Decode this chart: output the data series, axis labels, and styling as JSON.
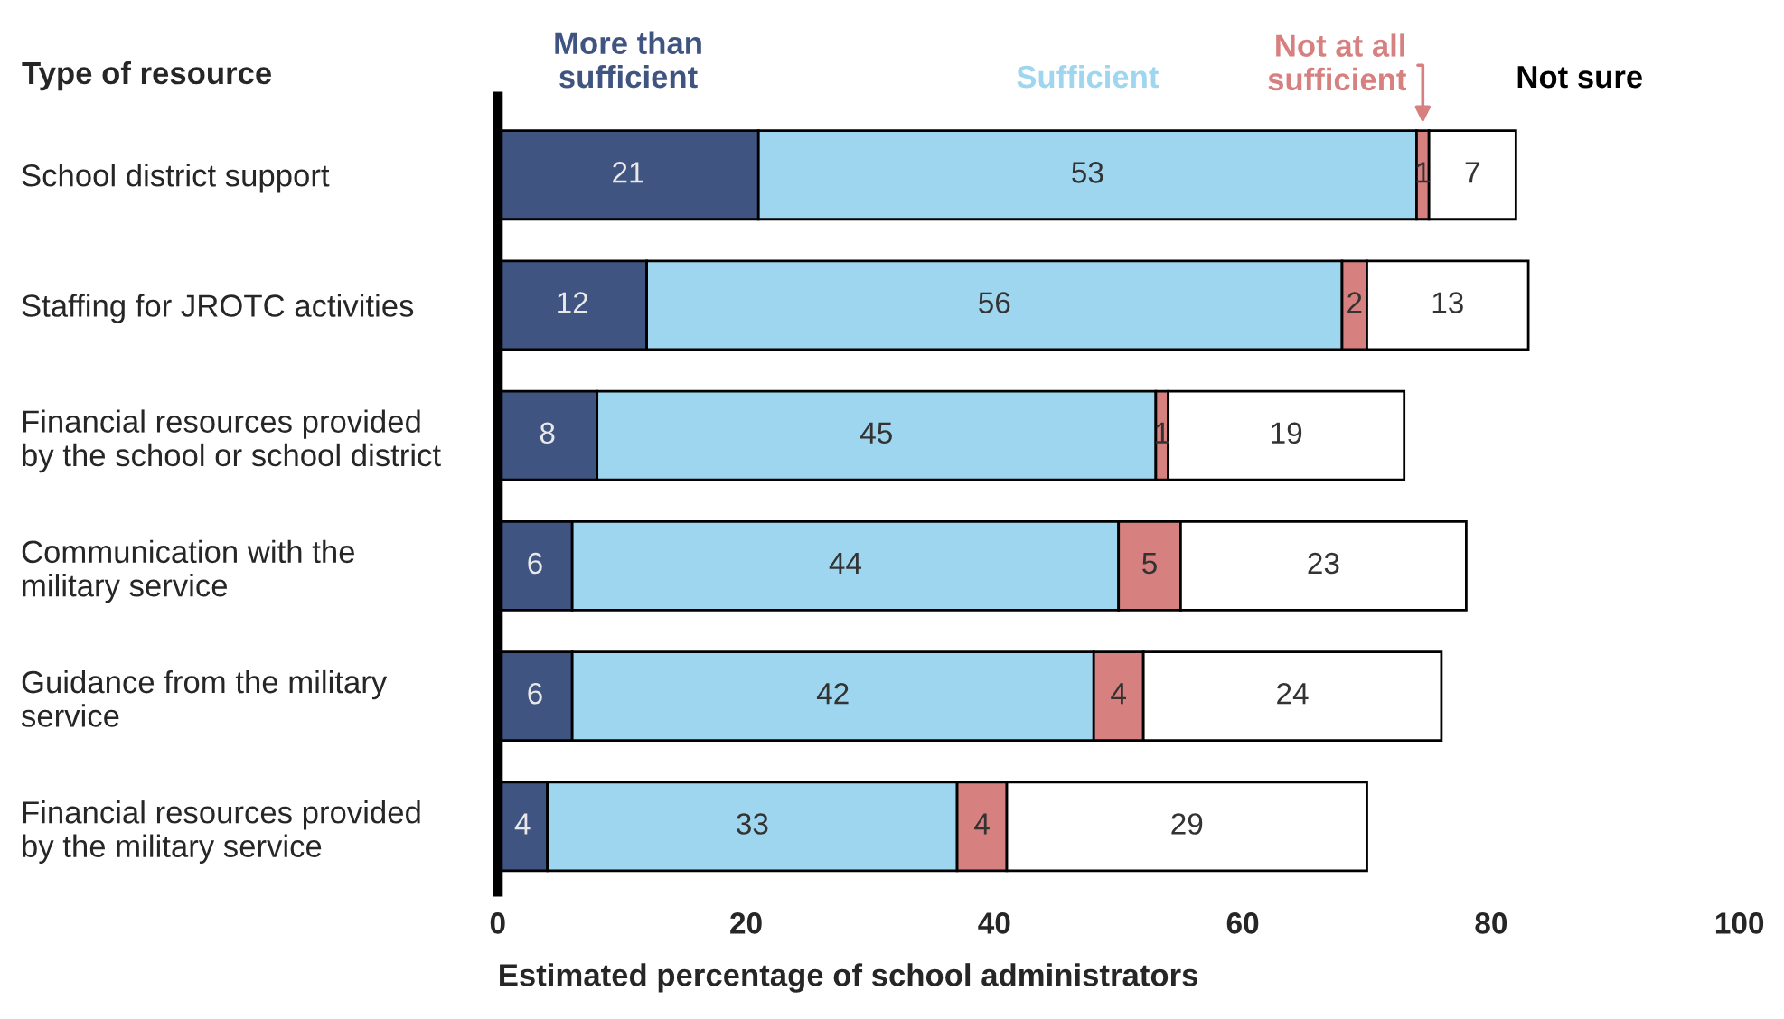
{
  "chart_data": {
    "type": "bar",
    "orientation": "horizontal",
    "stacked": true,
    "ylabel": "Type of resource",
    "xlabel": "Estimated percentage of school administrators",
    "categories": [
      "School district support",
      "Staffing for JROTC activities",
      "Financial resources provided\nby the school or school district",
      "Communication with the\nmilitary service",
      "Guidance from the military\nservice",
      "Financial resources provided\nby the military service"
    ],
    "series": [
      {
        "name": "More than\nsufficient",
        "color": "#3f5480",
        "values": [
          21,
          12,
          8,
          6,
          6,
          4
        ]
      },
      {
        "name": "Sufficient",
        "color": "#9ed6f0",
        "values": [
          53,
          56,
          45,
          44,
          42,
          33
        ]
      },
      {
        "name": "Not at all\nsufficient",
        "color": "#d68080",
        "values": [
          1,
          2,
          1,
          5,
          4,
          4
        ]
      },
      {
        "name": "Not sure",
        "color": "#ffffff",
        "values": [
          7,
          13,
          19,
          23,
          24,
          29
        ]
      }
    ],
    "xlim": [
      0,
      100
    ],
    "xticks": [
      0,
      20,
      40,
      60,
      80,
      100
    ],
    "data_labels": true,
    "legend": "top",
    "grid": false
  }
}
